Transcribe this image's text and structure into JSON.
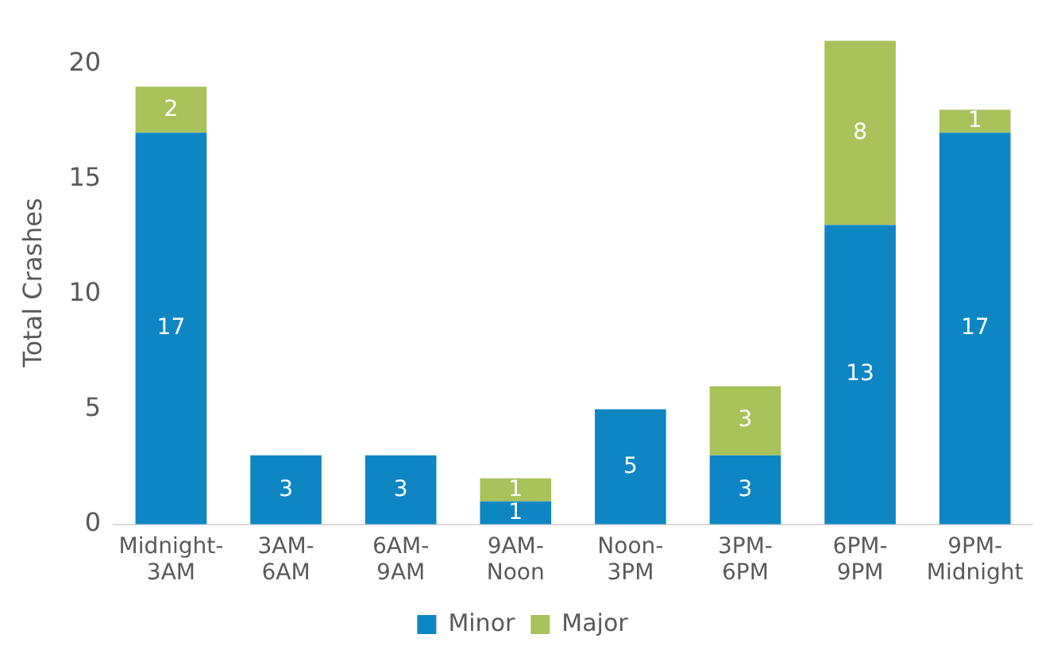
{
  "chart_data": {
    "type": "bar",
    "ylabel": "Total Crashes",
    "categories": [
      "Midnight-3AM",
      "3AM-6AM",
      "6AM-9AM",
      "9AM-Noon",
      "Noon-3PM",
      "3PM-6PM",
      "6PM-9PM",
      "9PM-Midnight"
    ],
    "series": [
      {
        "name": "Minor",
        "color": "#0e86c4",
        "values": [
          17,
          3,
          3,
          1,
          5,
          3,
          13,
          17
        ]
      },
      {
        "name": "Major",
        "color": "#a9c25a",
        "values": [
          2,
          null,
          null,
          1,
          null,
          3,
          8,
          1
        ]
      }
    ],
    "stacked": true,
    "ylim": [
      0,
      21
    ],
    "yticks": [
      0,
      5,
      10,
      15,
      20
    ],
    "grid": false,
    "legend": "bottom",
    "data_labels": true
  }
}
